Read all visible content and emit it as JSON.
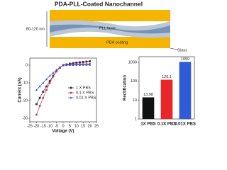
{
  "diagram": {
    "title": "PDA-PLL-Coated Nanochannel",
    "height_label": "80-120 nm",
    "pll_label": "PLL layer",
    "pda_label": "PDA coating",
    "glass_label": "Glass"
  },
  "chart_data": [
    {
      "type": "line",
      "x_label": "Voltage (V)",
      "y_label": "Current (nA)",
      "x": [
        -20,
        -17.5,
        -15,
        -12.5,
        -10,
        -7.5,
        -5,
        -2.5,
        0,
        2.5,
        5,
        7.5,
        10,
        12.5,
        15,
        17.5,
        20
      ],
      "series": [
        {
          "name": "1 X PBS",
          "color": "#2b2d5e",
          "marker": "square",
          "values": [
            -22,
            -18.5,
            -15,
            -12,
            -9,
            -6,
            -3.5,
            -1.5,
            0,
            0.4,
            0.8,
            1.1,
            1.4,
            1.6,
            1.8,
            2.0,
            2.2
          ]
        },
        {
          "name": "0.1 X PBS",
          "color": "#e8262a",
          "marker": "circle",
          "values": [
            -28,
            -23,
            -18.5,
            -14,
            -10,
            -6.5,
            -3.5,
            -1.5,
            0,
            0.2,
            0.3,
            0.4,
            0.5,
            0.5,
            0.6,
            0.6,
            0.7
          ]
        },
        {
          "name": "0.01 X PBS",
          "color": "#2f5bd9",
          "marker": "triangle",
          "values": [
            -14,
            -12,
            -10,
            -8,
            -6,
            -4.3,
            -2.7,
            -1.2,
            0,
            0.05,
            0.1,
            0.1,
            0.15,
            0.15,
            0.2,
            0.2,
            0.2
          ]
        }
      ],
      "xlim": [
        -25,
        25
      ],
      "xticks": [
        -25,
        -20,
        -15,
        -10,
        -5,
        0,
        5,
        10,
        15,
        20,
        25
      ],
      "ylim": [
        -32,
        4
      ],
      "yticks": [
        -30,
        -20,
        -10,
        0
      ],
      "legend": "lower right"
    },
    {
      "type": "bar",
      "y_label": "Rectification",
      "categories": [
        "1X PBS",
        "0.1X PBS",
        "0.01X PBS"
      ],
      "values": [
        13.98,
        120.1,
        1059
      ],
      "colors": [
        "#111111",
        "#e8262a",
        "#2f5bd9"
      ],
      "log_scale": true,
      "ylim": [
        1,
        2000
      ],
      "yticks": [
        1,
        10,
        100,
        1000
      ]
    }
  ]
}
